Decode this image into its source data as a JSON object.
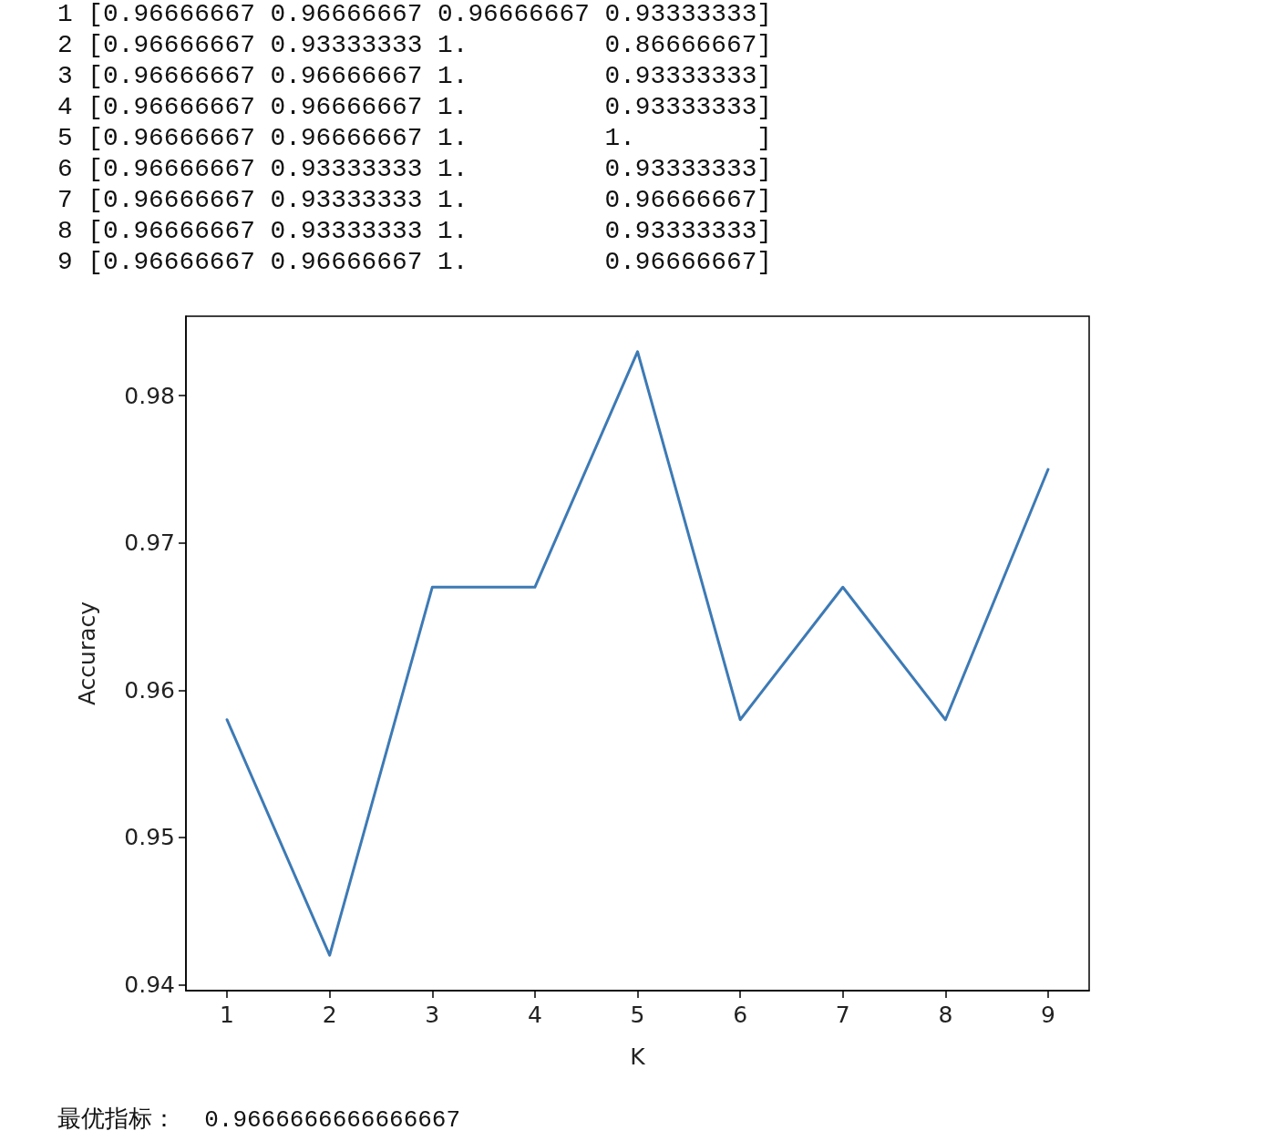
{
  "chart_data": {
    "type": "line",
    "xlabel": "K",
    "ylabel": "Accuracy",
    "x": [
      1,
      2,
      3,
      4,
      5,
      6,
      7,
      8,
      9
    ],
    "series": [
      {
        "color": "#3d7ab5",
        "values": [
          0.958,
          0.942,
          0.967,
          0.967,
          0.983,
          0.958,
          0.967,
          0.958,
          0.975
        ]
      }
    ],
    "xlim": [
      0.6,
      9.4
    ],
    "xticks": [
      1,
      2,
      3,
      4,
      5,
      6,
      7,
      8,
      9
    ],
    "ylim": [
      0.9396,
      0.9854
    ],
    "yticks": [
      0.94,
      0.95,
      0.96,
      0.97,
      0.98
    ],
    "marker": "none",
    "line_style": "solid",
    "annotations": [
      "1 [0.96666667 0.96666667 0.96666667 0.93333333]",
      "2 [0.96666667 0.93333333 1.         0.86666667]",
      "3 [0.96666667 0.96666667 1.         0.93333333]",
      "4 [0.96666667 0.96666667 1.         0.93333333]",
      "5 [0.96666667 0.96666667 1.         1.        ]",
      "6 [0.96666667 0.93333333 1.         0.93333333]",
      "7 [0.96666667 0.93333333 1.         0.96666667]",
      "8 [0.96666667 0.93333333 1.         0.93333333]",
      "9 [0.96666667 0.96666667 1.         0.96666667]",
      "最优指标：  0.9666666666666667"
    ]
  }
}
